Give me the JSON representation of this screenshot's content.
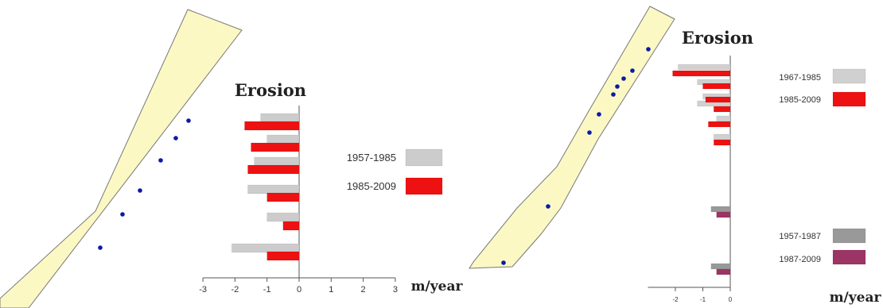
{
  "colors": {
    "strip_fill": "#fbf8c4",
    "strip_stroke": "#777777",
    "point": "#0a1aa8",
    "axis": "#555555"
  },
  "chart_data": [
    {
      "type": "bar",
      "orientation": "horizontal",
      "title": "Erosion",
      "xlabel": "m/year",
      "xlim": [
        -3,
        3
      ],
      "xticks": [
        -3,
        -2,
        -1,
        0,
        1,
        2,
        3
      ],
      "series": [
        {
          "name": "1957-1985",
          "color": "#cccccc",
          "values": [
            -1.2,
            -1.0,
            -1.4,
            -1.6,
            -1.0,
            -2.1
          ]
        },
        {
          "name": "1985-2009",
          "color": "#ee1111",
          "values": [
            -1.7,
            -1.5,
            -1.6,
            -1.0,
            -0.5,
            -1.0
          ]
        }
      ]
    },
    {
      "type": "bar",
      "orientation": "horizontal",
      "title": "Erosion",
      "xlabel": "m/year",
      "xlim": [
        -3,
        0
      ],
      "xticks": [
        -2,
        -1,
        0
      ],
      "series": [
        {
          "name": "1967-1985",
          "color": "#d0d0d0",
          "values": [
            -1.9,
            -1.2,
            -1.0,
            -1.2,
            -0.5,
            -0.6
          ]
        },
        {
          "name": "1985-2009",
          "color": "#ee1111",
          "values": [
            -2.1,
            -1.0,
            -0.9,
            -0.6,
            -0.8,
            -0.6
          ]
        },
        {
          "name": "1957-1987",
          "color": "#999999",
          "values": [
            -0.7,
            -0.7
          ]
        },
        {
          "name": "1987-2009",
          "color": "#9c3466",
          "values": [
            -0.5,
            -0.5
          ]
        }
      ]
    }
  ]
}
